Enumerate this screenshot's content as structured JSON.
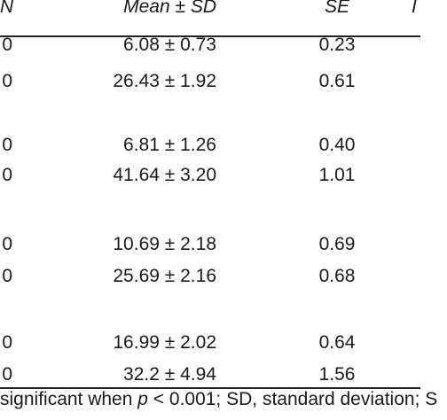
{
  "table": {
    "headers": {
      "n_partial": "N",
      "mean": "Mean ± SD",
      "se": "SE",
      "edge_partial": "I"
    },
    "rows": [
      {
        "n": "0",
        "mean": "6.08 ± 0.73",
        "se": "0.23"
      },
      {
        "n": "0",
        "mean": "26.43 ± 1.92",
        "se": "0.61"
      },
      {
        "n": "0",
        "mean": "6.81 ± 1.26",
        "se": "0.40"
      },
      {
        "n": "0",
        "mean": "41.64 ± 3.20",
        "se": "1.01"
      },
      {
        "n": "0",
        "mean": "10.69 ± 2.18",
        "se": "0.69"
      },
      {
        "n": "0",
        "mean": "25.69 ± 2.16",
        "se": "0.68"
      },
      {
        "n": "0",
        "mean": "16.99 ± 2.02",
        "se": "0.64"
      },
      {
        "n": "0",
        "mean": "32.2 ± 4.94",
        "se": "1.56"
      }
    ]
  },
  "footnote": {
    "before": "significant when ",
    "p_symbol": "p",
    "after": " < 0.001; SD, standard deviation; S"
  }
}
